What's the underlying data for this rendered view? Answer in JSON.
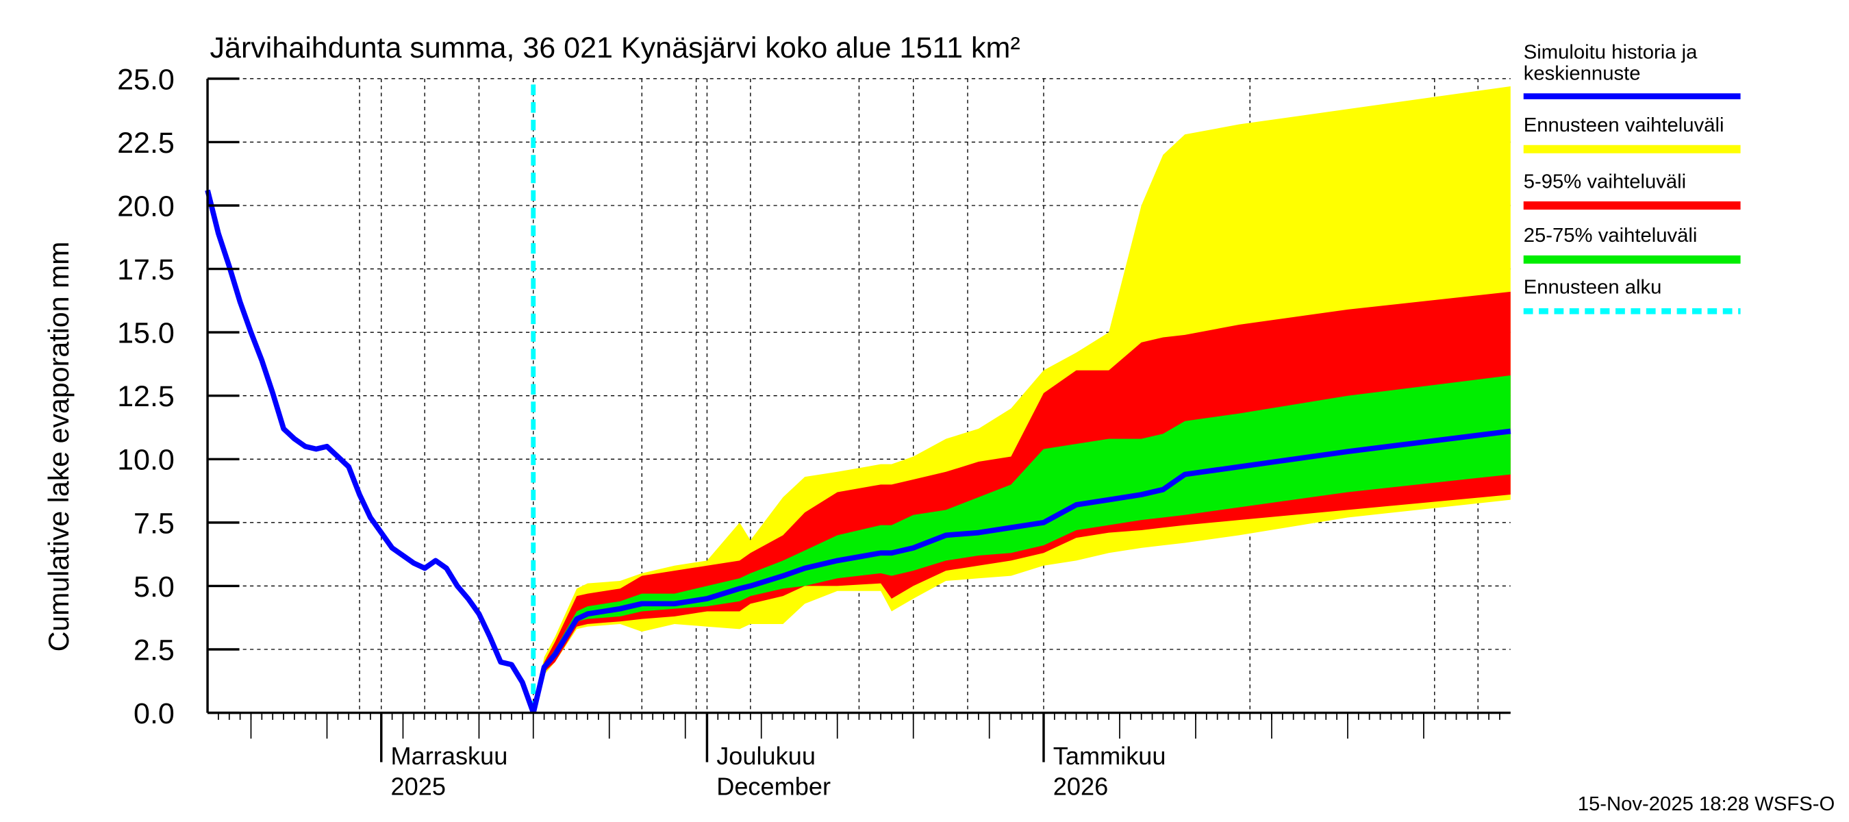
{
  "chart_data": {
    "type": "area",
    "title": "Järvihaihdunta summa, 36 021 Kynäsjärvi koko alue 1511 km²",
    "ylabel": "Cumulative lake evaporation   mm",
    "xlabel": "",
    "ylim": [
      0,
      25
    ],
    "xlim": [
      "2025-10-16",
      "2026-02-13"
    ],
    "yticks": [
      "0.0",
      "2.5",
      "5.0",
      "7.5",
      "10.0",
      "12.5",
      "15.0",
      "17.5",
      "20.0",
      "22.5",
      "25.0"
    ],
    "month_labels": [
      {
        "date": "2025-11-01",
        "line1": "Marraskuu",
        "line2": "2025"
      },
      {
        "date": "2025-12-01",
        "line1": "Joulukuu",
        "line2": "December"
      },
      {
        "date": "2026-01-01",
        "line1": "Tammikuu",
        "line2": "2026"
      }
    ],
    "grid": true,
    "forecast_start": "2025-11-15",
    "colors": {
      "history": "#0000ff",
      "full_range": "#ffff00",
      "p5_95": "#ff0000",
      "p25_75": "#00ee00",
      "forecast_start": "#00ffff"
    },
    "history": {
      "dates": [
        "2025-10-16",
        "2025-10-17",
        "2025-10-18",
        "2025-10-19",
        "2025-10-20",
        "2025-10-21",
        "2025-10-22",
        "2025-10-23",
        "2025-10-24",
        "2025-10-25",
        "2025-10-26",
        "2025-10-27",
        "2025-10-28",
        "2025-10-29",
        "2025-10-30",
        "2025-10-31",
        "2025-11-01",
        "2025-11-02",
        "2025-11-03",
        "2025-11-04",
        "2025-11-05",
        "2025-11-06",
        "2025-11-07",
        "2025-11-08",
        "2025-11-09",
        "2025-11-10",
        "2025-11-11",
        "2025-11-12",
        "2025-11-13",
        "2025-11-14",
        "2025-11-15"
      ],
      "values": [
        20.6,
        18.9,
        17.6,
        16.2,
        15.0,
        13.9,
        12.6,
        11.2,
        10.8,
        10.5,
        10.4,
        10.5,
        10.1,
        9.7,
        8.6,
        7.7,
        7.1,
        6.5,
        6.2,
        5.9,
        5.7,
        6.0,
        5.7,
        5.0,
        4.5,
        3.9,
        3.0,
        2.0,
        1.9,
        1.2,
        0.0
      ]
    },
    "forecast": {
      "dates": [
        "2025-11-15",
        "2025-11-16",
        "2025-11-17",
        "2025-11-19",
        "2025-11-20",
        "2025-11-23",
        "2025-11-25",
        "2025-11-28",
        "2025-12-01",
        "2025-12-04",
        "2025-12-05",
        "2025-12-08",
        "2025-12-10",
        "2025-12-13",
        "2025-12-17",
        "2025-12-18",
        "2025-12-20",
        "2025-12-23",
        "2025-12-26",
        "2025-12-29",
        "2026-01-01",
        "2026-01-04",
        "2026-01-07",
        "2026-01-10",
        "2026-01-12",
        "2026-01-14",
        "2026-01-19",
        "2026-01-29",
        "2026-02-13"
      ],
      "median": [
        0.0,
        1.8,
        2.3,
        3.7,
        3.9,
        4.1,
        4.3,
        4.3,
        4.5,
        4.9,
        5.0,
        5.4,
        5.7,
        6.0,
        6.3,
        6.3,
        6.5,
        7.0,
        7.1,
        7.3,
        7.5,
        8.2,
        8.4,
        8.6,
        8.8,
        9.4,
        9.7,
        10.3,
        11.1
      ],
      "full_low": [
        0.0,
        1.5,
        2.0,
        3.3,
        3.4,
        3.5,
        3.2,
        3.5,
        3.4,
        3.3,
        3.5,
        3.5,
        4.3,
        4.8,
        4.8,
        4.0,
        4.5,
        5.2,
        5.3,
        5.4,
        5.8,
        6.0,
        6.3,
        6.5,
        6.6,
        6.7,
        7.0,
        7.7,
        8.4
      ],
      "full_high": [
        0.0,
        2.2,
        3.0,
        4.9,
        5.1,
        5.2,
        5.5,
        5.8,
        6.0,
        7.5,
        6.8,
        8.5,
        9.3,
        9.5,
        9.8,
        9.8,
        10.1,
        10.8,
        11.2,
        12.0,
        13.5,
        14.2,
        15.0,
        20.0,
        22.0,
        22.8,
        23.2,
        23.8,
        24.7
      ],
      "p5": [
        0.0,
        1.6,
        2.0,
        3.4,
        3.5,
        3.6,
        3.7,
        3.8,
        4.0,
        4.0,
        4.3,
        4.6,
        5.0,
        5.0,
        5.1,
        4.5,
        5.0,
        5.6,
        5.8,
        6.0,
        6.3,
        6.9,
        7.1,
        7.2,
        7.3,
        7.4,
        7.6,
        8.0,
        8.6
      ],
      "p95": [
        0.0,
        2.0,
        2.8,
        4.6,
        4.7,
        4.9,
        5.4,
        5.6,
        5.8,
        6.0,
        6.3,
        7.0,
        7.9,
        8.7,
        9.0,
        9.0,
        9.2,
        9.5,
        9.9,
        10.1,
        12.6,
        13.5,
        13.5,
        14.6,
        14.8,
        14.9,
        15.3,
        15.9,
        16.6
      ],
      "p25": [
        0.0,
        1.7,
        2.2,
        3.6,
        3.7,
        3.8,
        4.0,
        4.1,
        4.2,
        4.4,
        4.6,
        4.9,
        5.0,
        5.3,
        5.5,
        5.4,
        5.6,
        6.0,
        6.2,
        6.3,
        6.6,
        7.2,
        7.4,
        7.6,
        7.7,
        7.8,
        8.1,
        8.7,
        9.4
      ],
      "p75": [
        0.0,
        1.9,
        2.5,
        4.0,
        4.2,
        4.4,
        4.7,
        4.7,
        5.0,
        5.3,
        5.5,
        6.0,
        6.4,
        7.0,
        7.4,
        7.4,
        7.8,
        8.0,
        8.5,
        9.0,
        10.4,
        10.6,
        10.8,
        10.8,
        11.0,
        11.5,
        11.8,
        12.5,
        13.3
      ]
    },
    "legend": {
      "placement": "right",
      "items": [
        {
          "label1": "Simuloitu historia ja",
          "label2": "keskiennuste",
          "style": "line",
          "color": "#0000ff"
        },
        {
          "label1": "Ennusteen vaihteluväli",
          "label2": "",
          "style": "band",
          "color": "#ffff00"
        },
        {
          "label1": "5-95% vaihteluväli",
          "label2": "",
          "style": "band",
          "color": "#ff0000"
        },
        {
          "label1": "25-75% vaihteluväli",
          "label2": "",
          "style": "band",
          "color": "#00ee00"
        },
        {
          "label1": "Ennusteen alku",
          "label2": "",
          "style": "dashed",
          "color": "#00ffff"
        }
      ]
    }
  },
  "footer": "15-Nov-2025 18:28 WSFS-O"
}
